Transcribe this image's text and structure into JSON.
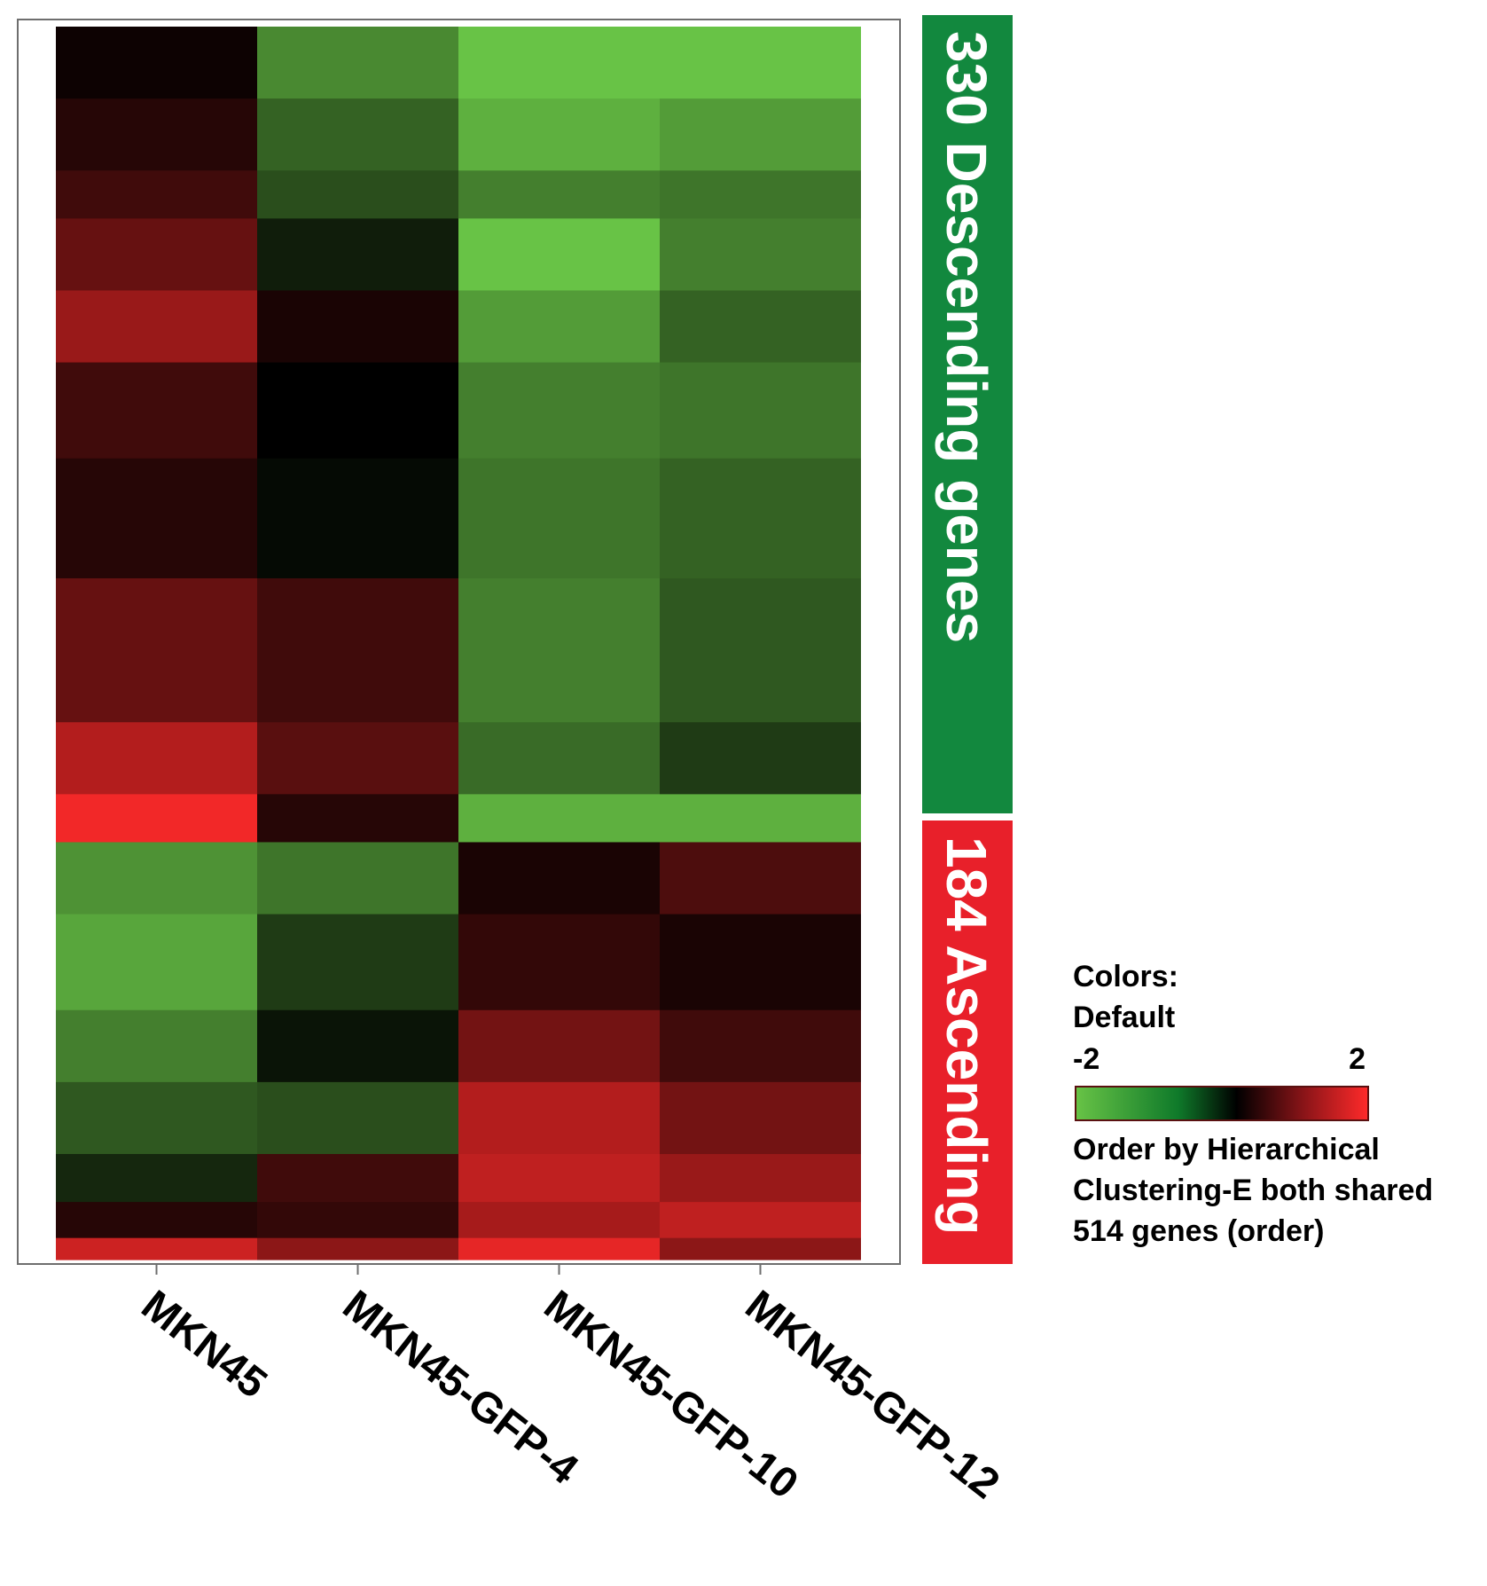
{
  "chart_data": {
    "type": "heatmap",
    "title": "",
    "xlabel": "",
    "ylabel": "",
    "columns": [
      "MKN45",
      "MKN45-GFP-4",
      "MKN45-GFP-10",
      "MKN45-GFP-12"
    ],
    "total_genes": 514,
    "groups": [
      {
        "label": "330 Descending genes",
        "count": 330,
        "color": "#12883e"
      },
      {
        "label": "184 Ascending",
        "count": 184,
        "color": "#e8202a"
      }
    ],
    "value_range": [
      -2,
      2
    ],
    "colorscale": {
      "low": "#68c346",
      "mid": "#000000",
      "high": "#ff2a2a"
    },
    "legend": {
      "title": "Colors:",
      "scheme": "Default",
      "min_label": "-2",
      "max_label": "2",
      "note_lines": [
        "Order by Hierarchical",
        "Clustering-E both shared",
        "514 genes (order)"
      ]
    },
    "segments": [
      {
        "start": 0,
        "end": 30,
        "values": [
          0.1,
          -1.4,
          -2.0,
          -2.0
        ]
      },
      {
        "start": 30,
        "end": 60,
        "values": [
          0.3,
          -1.0,
          -1.8,
          -1.6
        ]
      },
      {
        "start": 60,
        "end": 80,
        "values": [
          0.5,
          -0.8,
          -1.3,
          -1.2
        ]
      },
      {
        "start": 80,
        "end": 110,
        "values": [
          0.8,
          -0.3,
          -2.0,
          -1.3
        ]
      },
      {
        "start": 110,
        "end": 140,
        "values": [
          1.2,
          0.2,
          -1.6,
          -1.0
        ]
      },
      {
        "start": 140,
        "end": 180,
        "values": [
          0.5,
          0.0,
          -1.3,
          -1.2
        ]
      },
      {
        "start": 180,
        "end": 230,
        "values": [
          0.3,
          -0.1,
          -1.2,
          -1.0
        ]
      },
      {
        "start": 230,
        "end": 290,
        "values": [
          0.8,
          0.5,
          -1.3,
          -0.9
        ]
      },
      {
        "start": 290,
        "end": 320,
        "values": [
          1.4,
          0.7,
          -1.1,
          -0.6
        ]
      },
      {
        "start": 320,
        "end": 340,
        "values": [
          1.9,
          0.3,
          -1.8,
          -1.8
        ]
      },
      {
        "start": 340,
        "end": 370,
        "values": [
          -1.5,
          -1.2,
          0.2,
          0.6
        ]
      },
      {
        "start": 370,
        "end": 410,
        "values": [
          -1.7,
          -0.6,
          0.4,
          0.2
        ]
      },
      {
        "start": 410,
        "end": 440,
        "values": [
          -1.3,
          -0.2,
          0.9,
          0.5
        ]
      },
      {
        "start": 440,
        "end": 470,
        "values": [
          -0.9,
          -0.8,
          1.4,
          0.9
        ]
      },
      {
        "start": 470,
        "end": 490,
        "values": [
          -0.4,
          0.5,
          1.5,
          1.2
        ]
      },
      {
        "start": 490,
        "end": 505,
        "values": [
          0.3,
          0.4,
          1.3,
          1.5
        ]
      },
      {
        "start": 505,
        "end": 514,
        "values": [
          1.6,
          1.1,
          1.8,
          1.1
        ]
      }
    ]
  }
}
